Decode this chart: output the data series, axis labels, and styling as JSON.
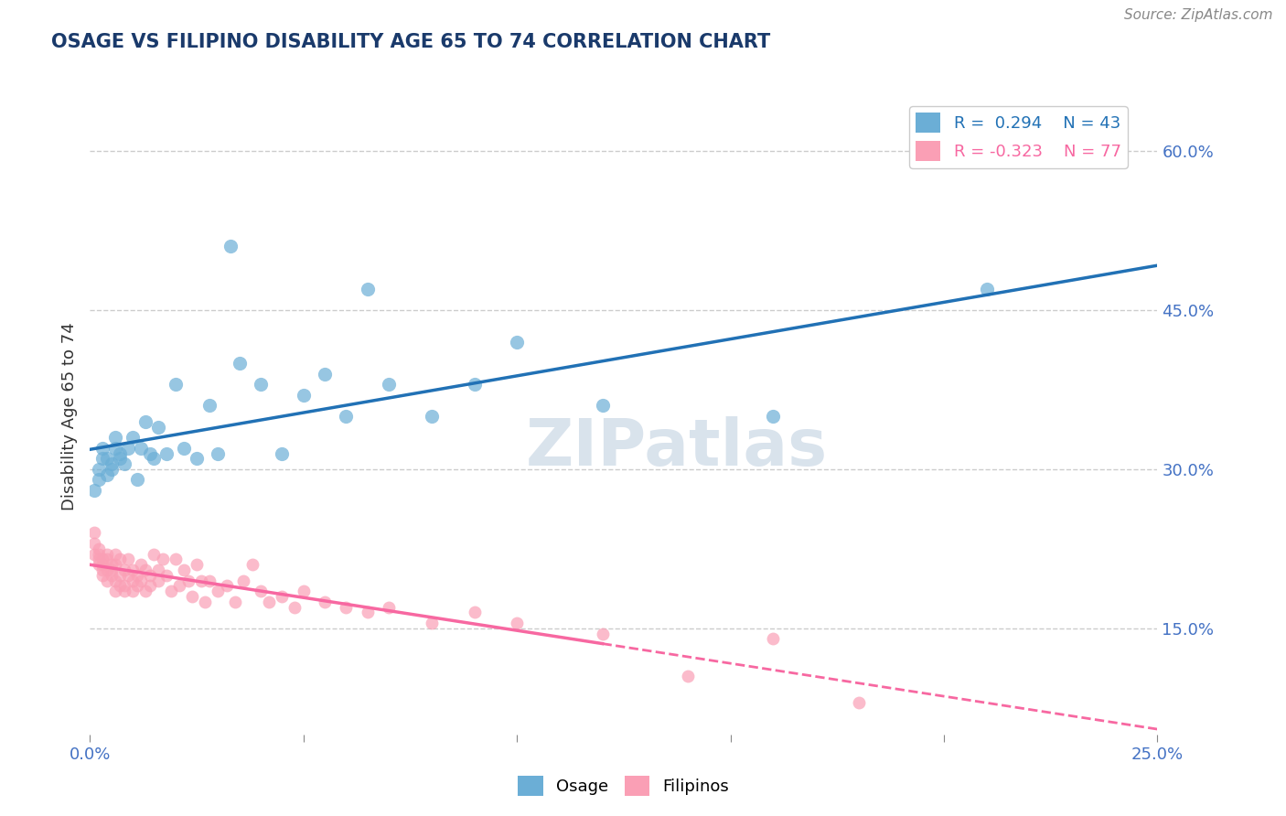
{
  "title": "OSAGE VS FILIPINO DISABILITY AGE 65 TO 74 CORRELATION CHART",
  "source": "Source: ZipAtlas.com",
  "ylabel": "Disability Age 65 to 74",
  "xlabel": "",
  "xlim": [
    0.0,
    0.25
  ],
  "ylim": [
    0.05,
    0.65
  ],
  "yticks": [
    0.15,
    0.3,
    0.45,
    0.6
  ],
  "ytick_labels": [
    "15.0%",
    "30.0%",
    "45.0%",
    "60.0%"
  ],
  "xticks": [
    0.0,
    0.05,
    0.1,
    0.15,
    0.2,
    0.25
  ],
  "xtick_labels": [
    "0.0%",
    "",
    "",
    "",
    "",
    "25.0%"
  ],
  "osage_R": 0.294,
  "osage_N": 43,
  "filipino_R": -0.323,
  "filipino_N": 77,
  "osage_color": "#6baed6",
  "filipino_color": "#fa9fb5",
  "osage_line_color": "#2171b5",
  "filipino_line_color": "#f768a1",
  "background_color": "#ffffff",
  "grid_color": "#cccccc",
  "title_color": "#1a3a6b",
  "watermark_text": "ZIPatlas",
  "watermark_color": "#d0dce8",
  "legend_osage_label": "Osage",
  "legend_filipino_label": "Filipinos",
  "osage_x": [
    0.001,
    0.002,
    0.002,
    0.003,
    0.003,
    0.004,
    0.004,
    0.005,
    0.005,
    0.006,
    0.006,
    0.007,
    0.007,
    0.008,
    0.009,
    0.01,
    0.011,
    0.012,
    0.013,
    0.014,
    0.015,
    0.016,
    0.018,
    0.02,
    0.022,
    0.025,
    0.028,
    0.03,
    0.033,
    0.035,
    0.04,
    0.045,
    0.05,
    0.055,
    0.06,
    0.065,
    0.07,
    0.08,
    0.09,
    0.1,
    0.12,
    0.16,
    0.21
  ],
  "osage_y": [
    0.28,
    0.3,
    0.29,
    0.32,
    0.31,
    0.295,
    0.31,
    0.305,
    0.3,
    0.32,
    0.33,
    0.315,
    0.31,
    0.305,
    0.32,
    0.33,
    0.29,
    0.32,
    0.345,
    0.315,
    0.31,
    0.34,
    0.315,
    0.38,
    0.32,
    0.31,
    0.36,
    0.315,
    0.51,
    0.4,
    0.38,
    0.315,
    0.37,
    0.39,
    0.35,
    0.47,
    0.38,
    0.35,
    0.38,
    0.42,
    0.36,
    0.35,
    0.47
  ],
  "filipino_x": [
    0.001,
    0.001,
    0.001,
    0.002,
    0.002,
    0.002,
    0.002,
    0.003,
    0.003,
    0.003,
    0.003,
    0.004,
    0.004,
    0.004,
    0.004,
    0.005,
    0.005,
    0.005,
    0.006,
    0.006,
    0.006,
    0.006,
    0.007,
    0.007,
    0.007,
    0.008,
    0.008,
    0.008,
    0.009,
    0.009,
    0.01,
    0.01,
    0.01,
    0.011,
    0.011,
    0.012,
    0.012,
    0.013,
    0.013,
    0.014,
    0.014,
    0.015,
    0.016,
    0.016,
    0.017,
    0.018,
    0.019,
    0.02,
    0.021,
    0.022,
    0.023,
    0.024,
    0.025,
    0.026,
    0.027,
    0.028,
    0.03,
    0.032,
    0.034,
    0.036,
    0.038,
    0.04,
    0.042,
    0.045,
    0.048,
    0.05,
    0.055,
    0.06,
    0.065,
    0.07,
    0.08,
    0.09,
    0.1,
    0.12,
    0.14,
    0.16,
    0.18
  ],
  "filipino_y": [
    0.23,
    0.24,
    0.22,
    0.225,
    0.215,
    0.22,
    0.21,
    0.21,
    0.205,
    0.215,
    0.2,
    0.22,
    0.215,
    0.205,
    0.195,
    0.21,
    0.205,
    0.2,
    0.22,
    0.21,
    0.195,
    0.185,
    0.215,
    0.2,
    0.19,
    0.205,
    0.19,
    0.185,
    0.215,
    0.2,
    0.205,
    0.195,
    0.185,
    0.2,
    0.19,
    0.21,
    0.195,
    0.205,
    0.185,
    0.2,
    0.19,
    0.22,
    0.205,
    0.195,
    0.215,
    0.2,
    0.185,
    0.215,
    0.19,
    0.205,
    0.195,
    0.18,
    0.21,
    0.195,
    0.175,
    0.195,
    0.185,
    0.19,
    0.175,
    0.195,
    0.21,
    0.185,
    0.175,
    0.18,
    0.17,
    0.185,
    0.175,
    0.17,
    0.165,
    0.17,
    0.155,
    0.165,
    0.155,
    0.145,
    0.105,
    0.14,
    0.08
  ]
}
